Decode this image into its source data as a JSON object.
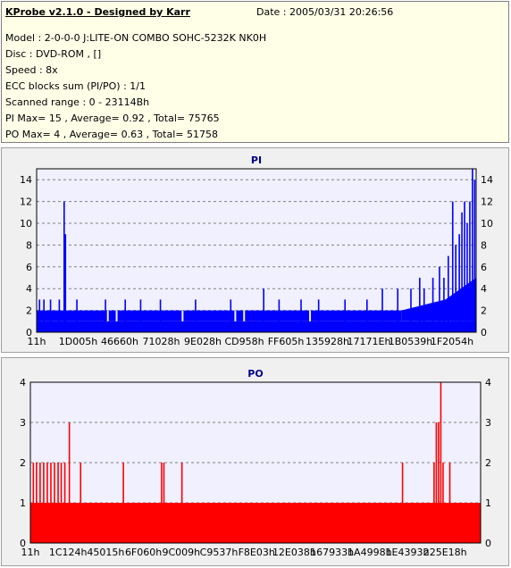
{
  "header": {
    "title": "KProbe v2.1.0 - Designed by Karr",
    "date": "Date : 2005/03/31 20:26:56",
    "lines": [
      "Model : 2-0-0-0 J:LITE-ON COMBO SOHC-5232K NK0H",
      "Disc : DVD-ROM ,  []",
      "Speed : 8x",
      "ECC blocks sum (PI/PO) : 1/1",
      "Scanned range : 0 - 23114Bh",
      "PI Max= 15 , Average= 0.92 , Total= 75765",
      "PO Max= 4 , Average= 0.63 , Total= 51758"
    ]
  },
  "colors": {
    "pi": "#0000ff",
    "po": "#ff0000",
    "plot_bg": "#f0f0ff",
    "panel_bg": "#f0f0f0",
    "title": "#00008b"
  },
  "chart_data": [
    {
      "type": "bar",
      "title": "PI",
      "ylim": [
        0,
        15
      ],
      "yticks": [
        0,
        2,
        4,
        6,
        8,
        10,
        12,
        14
      ],
      "grid": true,
      "xtick_labels": [
        "11h",
        "1D005h",
        "46660h",
        "71028h",
        "9E028h",
        "CD958h",
        "FF605h",
        "135928h",
        "17171Eh",
        "1B0539h",
        "1F2054h"
      ],
      "baseline": 1,
      "baseline_level": 2,
      "spikes": [
        {
          "x": 0.005,
          "y": 3
        },
        {
          "x": 0.015,
          "y": 3
        },
        {
          "x": 0.03,
          "y": 3
        },
        {
          "x": 0.05,
          "y": 3
        },
        {
          "x": 0.061,
          "y": 12
        },
        {
          "x": 0.064,
          "y": 9
        },
        {
          "x": 0.09,
          "y": 3
        },
        {
          "x": 0.155,
          "y": 3
        },
        {
          "x": 0.2,
          "y": 3
        },
        {
          "x": 0.235,
          "y": 3
        },
        {
          "x": 0.28,
          "y": 3
        },
        {
          "x": 0.36,
          "y": 3
        },
        {
          "x": 0.44,
          "y": 3
        },
        {
          "x": 0.515,
          "y": 4
        },
        {
          "x": 0.55,
          "y": 3
        },
        {
          "x": 0.6,
          "y": 3
        },
        {
          "x": 0.64,
          "y": 3
        },
        {
          "x": 0.7,
          "y": 3
        },
        {
          "x": 0.75,
          "y": 3
        },
        {
          "x": 0.785,
          "y": 4
        },
        {
          "x": 0.82,
          "y": 4
        },
        {
          "x": 0.85,
          "y": 4
        },
        {
          "x": 0.87,
          "y": 5
        },
        {
          "x": 0.88,
          "y": 4
        },
        {
          "x": 0.9,
          "y": 5
        },
        {
          "x": 0.915,
          "y": 6
        },
        {
          "x": 0.925,
          "y": 5
        },
        {
          "x": 0.935,
          "y": 7
        },
        {
          "x": 0.945,
          "y": 12
        },
        {
          "x": 0.952,
          "y": 8
        },
        {
          "x": 0.96,
          "y": 9
        },
        {
          "x": 0.966,
          "y": 11
        },
        {
          "x": 0.972,
          "y": 12
        },
        {
          "x": 0.978,
          "y": 10
        },
        {
          "x": 0.984,
          "y": 12
        },
        {
          "x": 0.99,
          "y": 15
        },
        {
          "x": 0.995,
          "y": 14
        }
      ],
      "dips": [
        0.16,
        0.18,
        0.33,
        0.45,
        0.47,
        0.62
      ]
    },
    {
      "type": "bar",
      "title": "PO",
      "ylim": [
        0,
        4
      ],
      "yticks": [
        0,
        1,
        2,
        3,
        4
      ],
      "grid": true,
      "xtick_labels": [
        "11h",
        "1C124h",
        "45015h",
        "6F060h",
        "9C009h",
        "C9537h",
        "F8E03h",
        "12E038h",
        "167933h",
        "1A4998h",
        "1E4393h",
        "225E18h"
      ],
      "baseline": 1,
      "spikes": [
        {
          "x": 0.005,
          "y": 2
        },
        {
          "x": 0.012,
          "y": 2
        },
        {
          "x": 0.02,
          "y": 2
        },
        {
          "x": 0.028,
          "y": 2
        },
        {
          "x": 0.036,
          "y": 2
        },
        {
          "x": 0.044,
          "y": 2
        },
        {
          "x": 0.052,
          "y": 2
        },
        {
          "x": 0.06,
          "y": 2
        },
        {
          "x": 0.067,
          "y": 2
        },
        {
          "x": 0.075,
          "y": 2
        },
        {
          "x": 0.085,
          "y": 3
        },
        {
          "x": 0.11,
          "y": 2
        },
        {
          "x": 0.205,
          "y": 2
        },
        {
          "x": 0.29,
          "y": 2
        },
        {
          "x": 0.295,
          "y": 2
        },
        {
          "x": 0.335,
          "y": 2
        },
        {
          "x": 0.825,
          "y": 2
        },
        {
          "x": 0.895,
          "y": 2
        },
        {
          "x": 0.9,
          "y": 3
        },
        {
          "x": 0.905,
          "y": 3
        },
        {
          "x": 0.91,
          "y": 4
        },
        {
          "x": 0.915,
          "y": 2
        },
        {
          "x": 0.93,
          "y": 2
        }
      ]
    }
  ]
}
